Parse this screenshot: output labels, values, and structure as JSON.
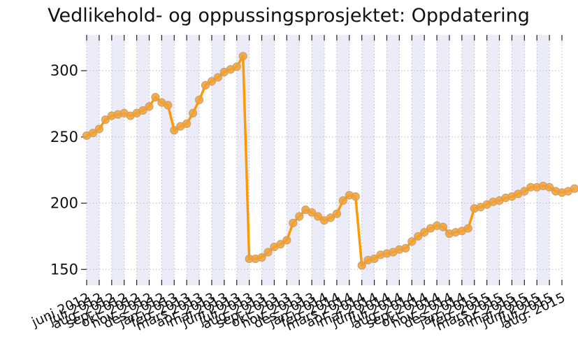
{
  "chart_data": {
    "type": "line",
    "title": "Vedlikehold- og oppussingsprosjektet: Oppdatering",
    "xlabel": "",
    "ylabel": "",
    "ylim": [
      138,
      327
    ],
    "yticks": [
      150,
      200,
      250,
      300
    ],
    "grid": true,
    "line_color": "#ff9900",
    "marker_color": "#f5a030",
    "background_band_color": "#ececf8",
    "x_tick_labels": [
      "juni 2012",
      "juli 2012",
      "aug. 2012",
      "sep. 2012",
      "okt. 2012",
      "nov. 2012",
      "des. 2012",
      "jan. 2013",
      "feb. 2013",
      "mars 2013",
      "apr. 2013",
      "mai 2013",
      "juni 2013",
      "juli 2013",
      "aug. 2013",
      "sep. 2013",
      "okt. 2013",
      "nov. 2013",
      "des. 2013",
      "jan. 2014",
      "feb. 2014",
      "mars 2014",
      "apr. 2014",
      "mai 2014",
      "juni 2014",
      "juli 2014",
      "aug. 2014",
      "sep. 2014",
      "okt. 2014",
      "nov. 2014",
      "des. 2014",
      "jan. 2015",
      "feb. 2015",
      "mars 2015",
      "apr. 2015",
      "mai 2015",
      "juni 2015",
      "juli 2015",
      "aug. 2015"
    ],
    "series": [
      {
        "x": [
          0,
          0.5,
          1,
          1.5,
          2,
          2.5,
          3,
          3.5,
          4,
          4.5,
          5,
          5.5,
          6,
          6.5,
          7,
          7.5,
          8,
          8.5,
          9,
          9.5,
          10,
          10.5,
          11,
          11.5,
          12,
          12.5,
          13,
          13.5,
          14,
          14.5,
          15,
          15.5,
          16,
          16.5,
          17,
          17.5,
          18,
          18.5,
          19,
          19.5,
          20,
          20.5,
          21,
          21.5,
          22,
          22.5,
          23,
          23.5,
          24,
          24.5,
          25,
          25.5,
          26,
          26.5,
          27,
          27.5,
          28,
          28.5,
          29,
          29.5,
          30,
          30.5,
          31,
          31.5,
          32,
          32.5,
          33,
          33.5,
          34,
          34.5,
          35,
          35.5,
          36,
          36.5,
          37,
          37.5,
          38,
          38.5,
          39
        ],
        "values": [
          251,
          253,
          256,
          263,
          266,
          267,
          268,
          266,
          268,
          270,
          273,
          280,
          276,
          274,
          255,
          258,
          260,
          268,
          278,
          289,
          292,
          295,
          299,
          301,
          303,
          311,
          158,
          158,
          159,
          163,
          167,
          169,
          172,
          185,
          190,
          195,
          193,
          190,
          187,
          189,
          192,
          202,
          206,
          205,
          153,
          157,
          158,
          161,
          162,
          163,
          165,
          166,
          171,
          175,
          178,
          181,
          183,
          182,
          177,
          178,
          179,
          181,
          196,
          197,
          199,
          201,
          202,
          204,
          205,
          207,
          209,
          212,
          212,
          213,
          212,
          209,
          208,
          209,
          211
        ]
      }
    ]
  }
}
